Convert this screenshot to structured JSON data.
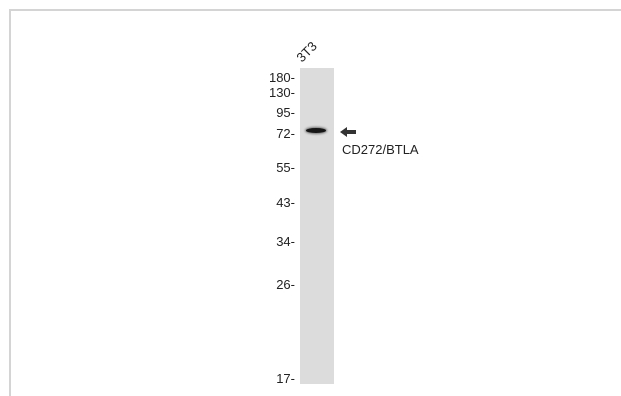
{
  "lane": {
    "label": "3T3"
  },
  "markers": [
    {
      "label": "180-",
      "kda": 180
    },
    {
      "label": "130-",
      "kda": 130
    },
    {
      "label": "95-",
      "kda": 95
    },
    {
      "label": "72-",
      "kda": 72
    },
    {
      "label": "55-",
      "kda": 55
    },
    {
      "label": "43-",
      "kda": 43
    },
    {
      "label": "34-",
      "kda": 34
    },
    {
      "label": "26-",
      "kda": 26
    },
    {
      "label": "17-",
      "kda": 17
    }
  ],
  "band": {
    "label": "CD272/BTLA",
    "icon": "arrow-left-icon"
  },
  "colors": {
    "lane": "#dcdcdc",
    "band": "#151515",
    "frame": "#d4d4d4",
    "text": "#222222"
  }
}
